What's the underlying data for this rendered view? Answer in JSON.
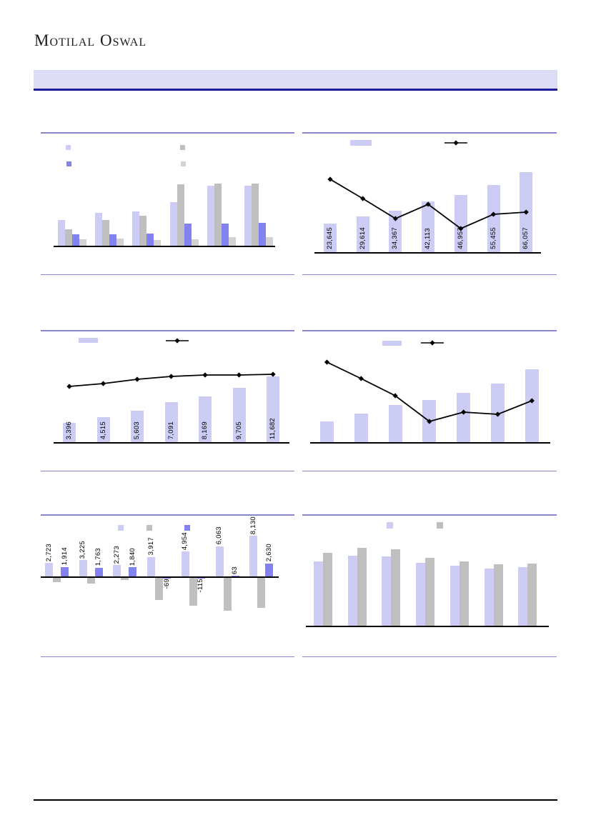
{
  "page": {
    "logo": "Motilal Oswal"
  },
  "colors": {
    "lavender": "#ccccf4",
    "blue": "#8282f0",
    "gray": "#bfbfbf",
    "light_gray": "#d2d2d2",
    "line_series": "#000000",
    "axis": "#000000",
    "panel_border": "#8886c6",
    "banner_bg": "#dcdcf5",
    "banner_border": "#1b1b9b",
    "footer_rule": "#000000",
    "text": "#1c1c1c"
  },
  "chart_data": [
    {
      "id": "top-left",
      "type": "bar",
      "note": "grouped bar chart, 4 series x 6 groups; no visible titles, axis or data labels; values estimated in pixel units",
      "ylim": [
        0,
        159
      ],
      "unit": "estimated-px",
      "legend_position": "top",
      "series": [
        {
          "name": "lavender-bars",
          "role": "bar",
          "color": "lavender",
          "estimated": true,
          "labels_visible": false,
          "values": [
            36,
            46,
            48,
            61,
            84,
            84
          ]
        },
        {
          "name": "gray-bars",
          "role": "bar",
          "color": "gray",
          "estimated": true,
          "labels_visible": false,
          "values": [
            23,
            36,
            42,
            86,
            87,
            87
          ]
        },
        {
          "name": "blue-bars",
          "role": "bar",
          "color": "blue",
          "estimated": true,
          "labels_visible": false,
          "values": [
            16,
            16,
            17,
            31,
            31,
            32
          ]
        },
        {
          "name": "light-gray-bars",
          "role": "bar",
          "color": "light_gray",
          "estimated": true,
          "labels_visible": false,
          "values": [
            9,
            10,
            8,
            9,
            12,
            12
          ]
        }
      ]
    },
    {
      "id": "top-right",
      "type": "bar+line",
      "note": "7 bars with rotated value labels at base; black diamond line on secondary (unlabeled) axis",
      "ylim": [
        0,
        99000
      ],
      "legend_position": "top",
      "series": [
        {
          "name": "value-bars",
          "role": "bar",
          "color": "lavender",
          "labels_visible": true,
          "values": [
            23645,
            29614,
            34367,
            42113,
            46957,
            55455,
            66057
          ],
          "labels": [
            "23,645",
            "29,614",
            "34,367",
            "42,113",
            "46,957",
            "55,455",
            "66,057"
          ]
        },
        {
          "name": "trend-line",
          "role": "line",
          "color": "line_series",
          "marker": "diamond",
          "estimated": true,
          "unit": "px-above-axis",
          "values": [
            102,
            75,
            47,
            67,
            33,
            53,
            56
          ]
        }
      ]
    },
    {
      "id": "middle-left",
      "type": "bar+line",
      "note": "7 rising bars with rotated value labels at base; gently rising diamond line",
      "ylim": [
        0,
        20000
      ],
      "legend_position": "top",
      "series": [
        {
          "name": "value-bars",
          "role": "bar",
          "color": "lavender",
          "labels_visible": true,
          "values": [
            3396,
            4515,
            5603,
            7091,
            8169,
            9705,
            11682
          ],
          "labels": [
            "3,396",
            "4,515",
            "5,603",
            "7,091",
            "8,169",
            "9,705",
            "11,682"
          ]
        },
        {
          "name": "trend-line",
          "role": "line",
          "color": "line_series",
          "marker": "diamond",
          "estimated": true,
          "unit": "px-above-axis",
          "values": [
            78,
            82,
            88,
            92,
            94,
            94,
            95
          ]
        }
      ]
    },
    {
      "id": "middle-right",
      "type": "bar+line",
      "note": "7 rising bars, no data labels; falling-then-recovering diamond line; values estimated in pixel units",
      "ylim": [
        0,
        157
      ],
      "unit": "estimated-px",
      "legend_position": "top",
      "series": [
        {
          "name": "value-bars",
          "role": "bar",
          "color": "lavender",
          "estimated": true,
          "labels_visible": false,
          "values": [
            29,
            40,
            52,
            59,
            69,
            82,
            102
          ]
        },
        {
          "name": "trend-line",
          "role": "line",
          "color": "line_series",
          "marker": "diamond",
          "estimated": true,
          "unit": "px-above-axis",
          "values": [
            112,
            89,
            65,
            29,
            42,
            39,
            58
          ]
        }
      ]
    },
    {
      "id": "bottom-left",
      "type": "bar",
      "note": "3 series x 7 groups with positive/negative bars; lavender and blue series carry rotated labels, gray series unlabeled (estimated)",
      "ylim": [
        -7000,
        12400
      ],
      "legend_position": "top",
      "series": [
        {
          "name": "lavender-bars",
          "role": "bar",
          "color": "lavender",
          "labels_visible": true,
          "values": [
            2723,
            3225,
            2273,
            3917,
            4954,
            6063,
            8130
          ],
          "labels": [
            "2,723",
            "3,225",
            "2,273",
            "3,917",
            "4,954",
            "6,063",
            "8,130"
          ]
        },
        {
          "name": "gray-bars",
          "role": "bar",
          "color": "gray",
          "estimated": true,
          "labels_visible": false,
          "values": [
            -960,
            -1190,
            -470,
            -4430,
            -5580,
            -6580,
            -6010
          ]
        },
        {
          "name": "blue-bars",
          "role": "bar",
          "color": "blue",
          "labels_visible": true,
          "values": [
            1914,
            1763,
            1840,
            -69,
            -115,
            63,
            2630
          ],
          "labels": [
            "1,914",
            "1,763",
            "1,840",
            "-69",
            "-115",
            "63",
            "2,630"
          ]
        }
      ]
    },
    {
      "id": "bottom-right",
      "type": "bar",
      "note": "2 series x 7 groups, no labels; values estimated in pixel units",
      "ylim": [
        0,
        156
      ],
      "unit": "estimated-px",
      "legend_position": "top",
      "series": [
        {
          "name": "lavender-bars",
          "role": "bar",
          "color": "lavender",
          "estimated": true,
          "labels_visible": false,
          "values": [
            90,
            98,
            97,
            88,
            84,
            80,
            82
          ]
        },
        {
          "name": "gray-bars",
          "role": "bar",
          "color": "gray",
          "estimated": true,
          "labels_visible": false,
          "values": [
            102,
            109,
            107,
            95,
            90,
            86,
            87
          ]
        }
      ]
    }
  ]
}
